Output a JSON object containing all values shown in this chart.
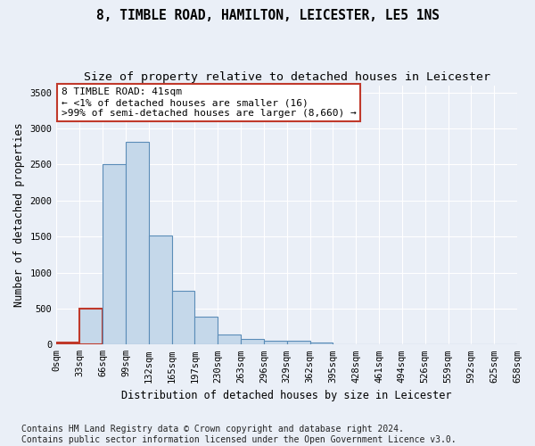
{
  "title": "8, TIMBLE ROAD, HAMILTON, LEICESTER, LE5 1NS",
  "subtitle": "Size of property relative to detached houses in Leicester",
  "xlabel": "Distribution of detached houses by size in Leicester",
  "ylabel": "Number of detached properties",
  "bar_values": [
    25,
    500,
    2510,
    2820,
    1520,
    750,
    390,
    140,
    75,
    55,
    55,
    30,
    0,
    0,
    0,
    0,
    0,
    0,
    0,
    0
  ],
  "bar_color": "#c5d8ea",
  "bar_edge_color": "#5b8db8",
  "highlight_bar_indices": [
    0,
    1
  ],
  "highlight_bar_edge_color": "#c0392b",
  "bin_labels": [
    "0sqm",
    "33sqm",
    "66sqm",
    "99sqm",
    "132sqm",
    "165sqm",
    "197sqm",
    "230sqm",
    "263sqm",
    "296sqm",
    "329sqm",
    "362sqm",
    "395sqm",
    "428sqm",
    "461sqm",
    "494sqm",
    "526sqm",
    "559sqm",
    "592sqm",
    "625sqm",
    "658sqm"
  ],
  "ylim": [
    0,
    3600
  ],
  "yticks": [
    0,
    500,
    1000,
    1500,
    2000,
    2500,
    3000,
    3500
  ],
  "annotation_text": "8 TIMBLE ROAD: 41sqm\n← <1% of detached houses are smaller (16)\n>99% of semi-detached houses are larger (8,660) →",
  "annotation_box_edge": "#c0392b",
  "footer_line1": "Contains HM Land Registry data © Crown copyright and database right 2024.",
  "footer_line2": "Contains public sector information licensed under the Open Government Licence v3.0.",
  "background_color": "#eaeff7",
  "plot_bg_color": "#eaeff7",
  "grid_color": "#ffffff",
  "title_fontsize": 10.5,
  "subtitle_fontsize": 9.5,
  "axis_label_fontsize": 8.5,
  "tick_fontsize": 7.5,
  "footer_fontsize": 7,
  "annotation_fontsize": 8
}
